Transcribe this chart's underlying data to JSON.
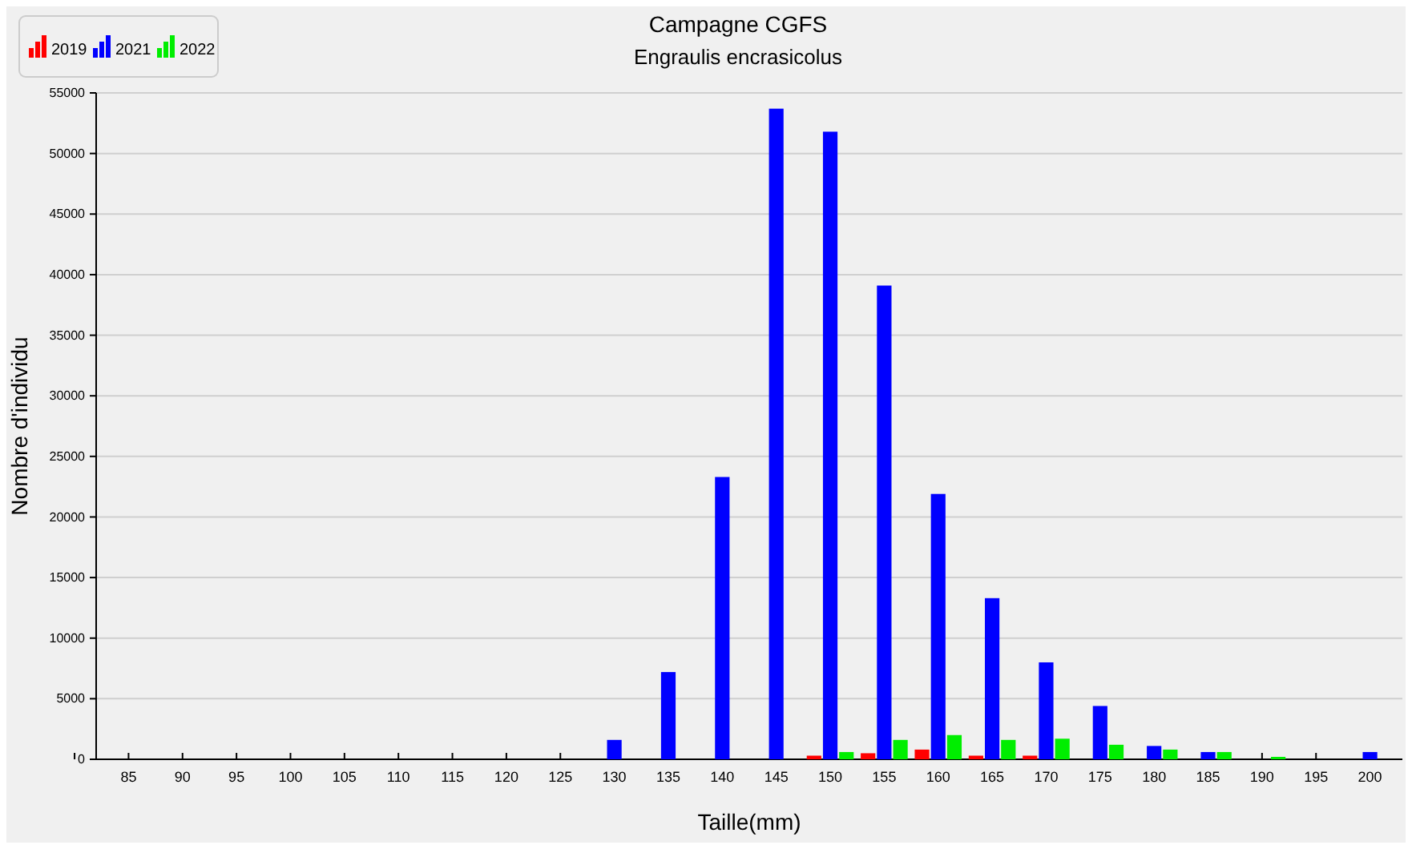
{
  "chart_data": {
    "type": "bar",
    "title": "Campagne CGFS",
    "subtitle": "Engraulis encrasicolus",
    "xlabel": "Taille(mm)",
    "ylabel": "Nombre d'individu",
    "categories": [
      "85",
      "90",
      "95",
      "100",
      "105",
      "110",
      "115",
      "120",
      "125",
      "130",
      "135",
      "140",
      "145",
      "150",
      "155",
      "160",
      "165",
      "170",
      "175",
      "180",
      "185",
      "190",
      "195",
      "200"
    ],
    "series": [
      {
        "name": "2019",
        "color": "#ff0000",
        "values": [
          0,
          0,
          0,
          0,
          0,
          0,
          0,
          0,
          0,
          0,
          0,
          0,
          0,
          300,
          500,
          800,
          300,
          300,
          0,
          0,
          0,
          0,
          0,
          0
        ]
      },
      {
        "name": "2021",
        "color": "#0000ff",
        "values": [
          0,
          0,
          0,
          0,
          0,
          0,
          0,
          0,
          0,
          1600,
          7200,
          23300,
          53700,
          51800,
          39100,
          21900,
          13300,
          8000,
          4400,
          1100,
          600,
          0,
          0,
          600
        ]
      },
      {
        "name": "2022",
        "color": "#00ee00",
        "values": [
          0,
          0,
          0,
          0,
          0,
          0,
          0,
          0,
          0,
          0,
          0,
          0,
          0,
          600,
          1600,
          2000,
          1600,
          1700,
          1200,
          800,
          600,
          200,
          0,
          0
        ]
      }
    ],
    "ylim": [
      0,
      55000
    ],
    "yticks": [
      0,
      5000,
      10000,
      15000,
      20000,
      25000,
      30000,
      35000,
      40000,
      45000,
      50000,
      55000
    ],
    "grid": "y",
    "legend": "top left"
  }
}
